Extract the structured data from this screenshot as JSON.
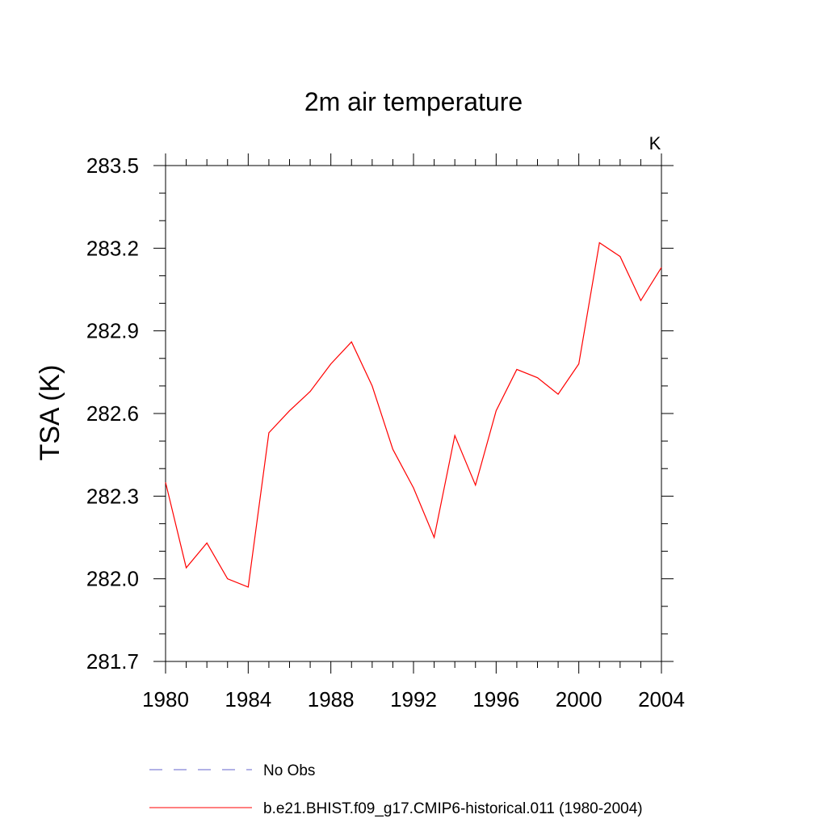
{
  "chart_data": {
    "type": "line",
    "title": "2m air temperature",
    "units": "K",
    "ylabel": "TSA  (K)",
    "xlabel": "",
    "xlim": [
      1980,
      2004
    ],
    "ylim": [
      281.7,
      283.5
    ],
    "x_ticks": [
      "1980",
      "1984",
      "1988",
      "1992",
      "1996",
      "2000",
      "2004"
    ],
    "y_ticks": [
      "281.7",
      "282.0",
      "282.3",
      "282.6",
      "282.9",
      "283.2",
      "283.5"
    ],
    "grid": false,
    "legend_position": "bottom",
    "legend": [
      {
        "label": "No Obs",
        "color": "#6666cc",
        "dash": "dashed"
      },
      {
        "label": "b.e21.BHIST.f09_g17.CMIP6-historical.011 (1980-2004)",
        "color": "#ff0000",
        "dash": "solid"
      }
    ],
    "series": [
      {
        "name": "b.e21.BHIST.f09_g17.CMIP6-historical.011 (1980-2004)",
        "color": "#ff0000",
        "x": [
          1980,
          1981,
          1982,
          1983,
          1984,
          1985,
          1986,
          1987,
          1988,
          1989,
          1990,
          1991,
          1992,
          1993,
          1994,
          1995,
          1996,
          1997,
          1998,
          1999,
          2000,
          2001,
          2002,
          2003,
          2004
        ],
        "values": [
          282.35,
          282.04,
          282.13,
          282.0,
          281.97,
          282.53,
          282.61,
          282.68,
          282.78,
          282.86,
          282.7,
          282.47,
          282.33,
          282.15,
          282.52,
          282.34,
          282.61,
          282.76,
          282.73,
          282.67,
          282.78,
          283.22,
          283.17,
          283.01,
          283.13
        ]
      }
    ]
  }
}
